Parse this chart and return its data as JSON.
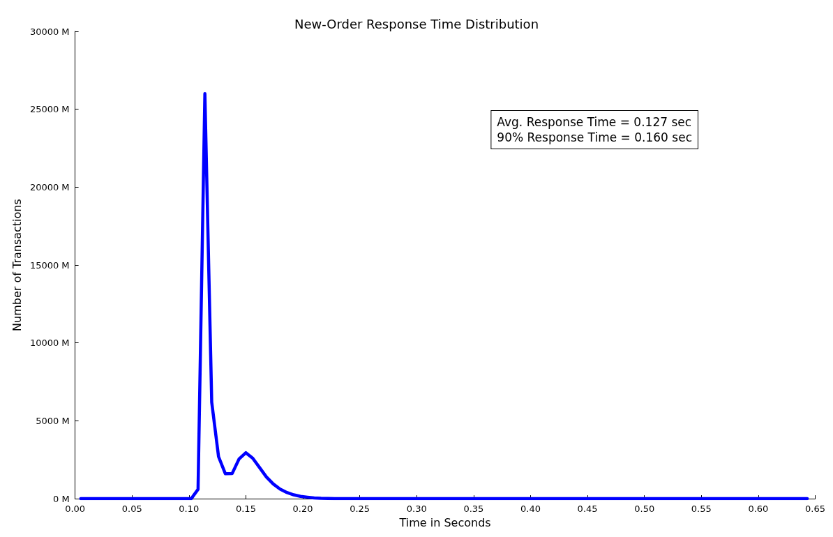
{
  "chart_data": {
    "type": "line",
    "title": "New-Order Response Time Distribution",
    "xlabel": "Time in Seconds",
    "ylabel": "Number of Transactions",
    "x": [
      0.005,
      0.102,
      0.108,
      0.114,
      0.12,
      0.126,
      0.132,
      0.138,
      0.144,
      0.15,
      0.156,
      0.162,
      0.168,
      0.174,
      0.18,
      0.186,
      0.192,
      0.198,
      0.204,
      0.21,
      0.216,
      0.222,
      0.228,
      0.643
    ],
    "series": [
      {
        "color": "#0000ff",
        "values": [
          0,
          0,
          600,
          26000,
          6200,
          2700,
          1600,
          1620,
          2550,
          2950,
          2600,
          2000,
          1400,
          950,
          620,
          400,
          250,
          150,
          100,
          50,
          30,
          20,
          0,
          0
        ]
      }
    ],
    "xlim": [
      0,
      0.65
    ],
    "xticks": [
      {
        "value": 0,
        "label": "0.00"
      },
      0.05,
      {
        "value": 0.1,
        "label": "0.10"
      },
      0.15,
      {
        "value": 0.2,
        "label": "0.20"
      },
      0.25,
      {
        "value": 0.3,
        "label": "0.30"
      },
      0.35,
      {
        "value": 0.4,
        "label": "0.40"
      },
      0.45,
      {
        "value": 0.5,
        "label": "0.50"
      },
      0.55,
      {
        "value": 0.6,
        "label": "0.60"
      },
      0.65
    ],
    "ylim": [
      0,
      30000
    ],
    "yticks": [
      {
        "value": 0,
        "label": "0 M"
      },
      {
        "value": 5000,
        "label": "5000 M"
      },
      {
        "value": 10000,
        "label": "10000 M"
      },
      {
        "value": 15000,
        "label": "15000 M"
      },
      {
        "value": 20000,
        "label": "20000 M"
      },
      {
        "value": 25000,
        "label": "25000 M"
      },
      {
        "value": 30000,
        "label": "30000 M"
      }
    ],
    "annotations": [
      "Avg. Response Time = 0.127 sec\n90% Response Time = 0.160 sec"
    ],
    "grid": false,
    "marker": "none",
    "line_style": "solid"
  }
}
